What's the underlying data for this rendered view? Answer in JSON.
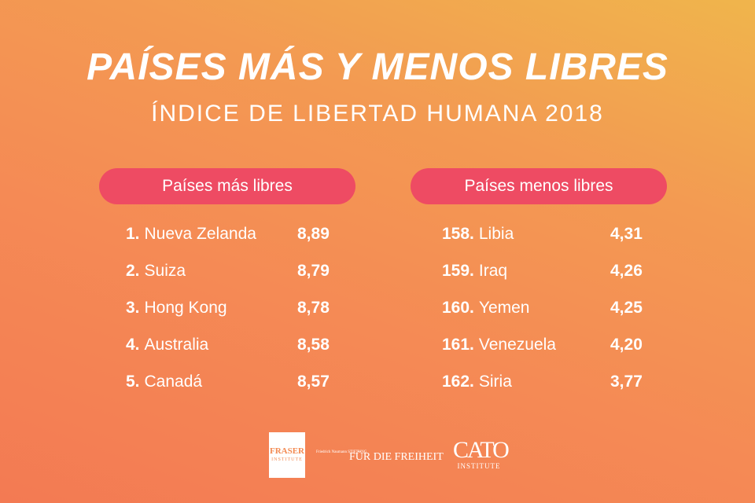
{
  "title": "PAÍSES MÁS Y MENOS LIBRES",
  "subtitle": "ÍNDICE DE LIBERTAD HUMANA 2018",
  "most_free": {
    "header": "Países más libres",
    "rows": [
      {
        "rank": "1.",
        "country": "Nueva Zelanda",
        "score": "8,89"
      },
      {
        "rank": "2.",
        "country": "Suiza",
        "score": "8,79"
      },
      {
        "rank": "3.",
        "country": "Hong Kong",
        "score": "8,78"
      },
      {
        "rank": "4.",
        "country": "Australia",
        "score": "8,58"
      },
      {
        "rank": "5.",
        "country": "Canadá",
        "score": "8,57"
      }
    ]
  },
  "least_free": {
    "header": "Países menos libres",
    "rows": [
      {
        "rank": "158.",
        "country": "Libia",
        "score": "4,31"
      },
      {
        "rank": "159.",
        "country": "Iraq",
        "score": "4,26"
      },
      {
        "rank": "160.",
        "country": "Yemen",
        "score": "4,25"
      },
      {
        "rank": "161.",
        "country": "Venezuela",
        "score": "4,20"
      },
      {
        "rank": "162.",
        "country": "Siria",
        "score": "3,77"
      }
    ]
  },
  "logos": {
    "fraser_top": "FRASER",
    "fraser_bottom": "INSTITUTE",
    "naumann_small": "Friedrich Naumann STIFTUNG",
    "naumann_big": "FÜR DIE FREIHEIT",
    "cato_big": "CATO",
    "cato_small": "INSTITUTE"
  },
  "colors": {
    "pill": "#ee4b63",
    "background_start": "#f0b54c",
    "background_end": "#f37a53",
    "text": "#ffffff"
  }
}
